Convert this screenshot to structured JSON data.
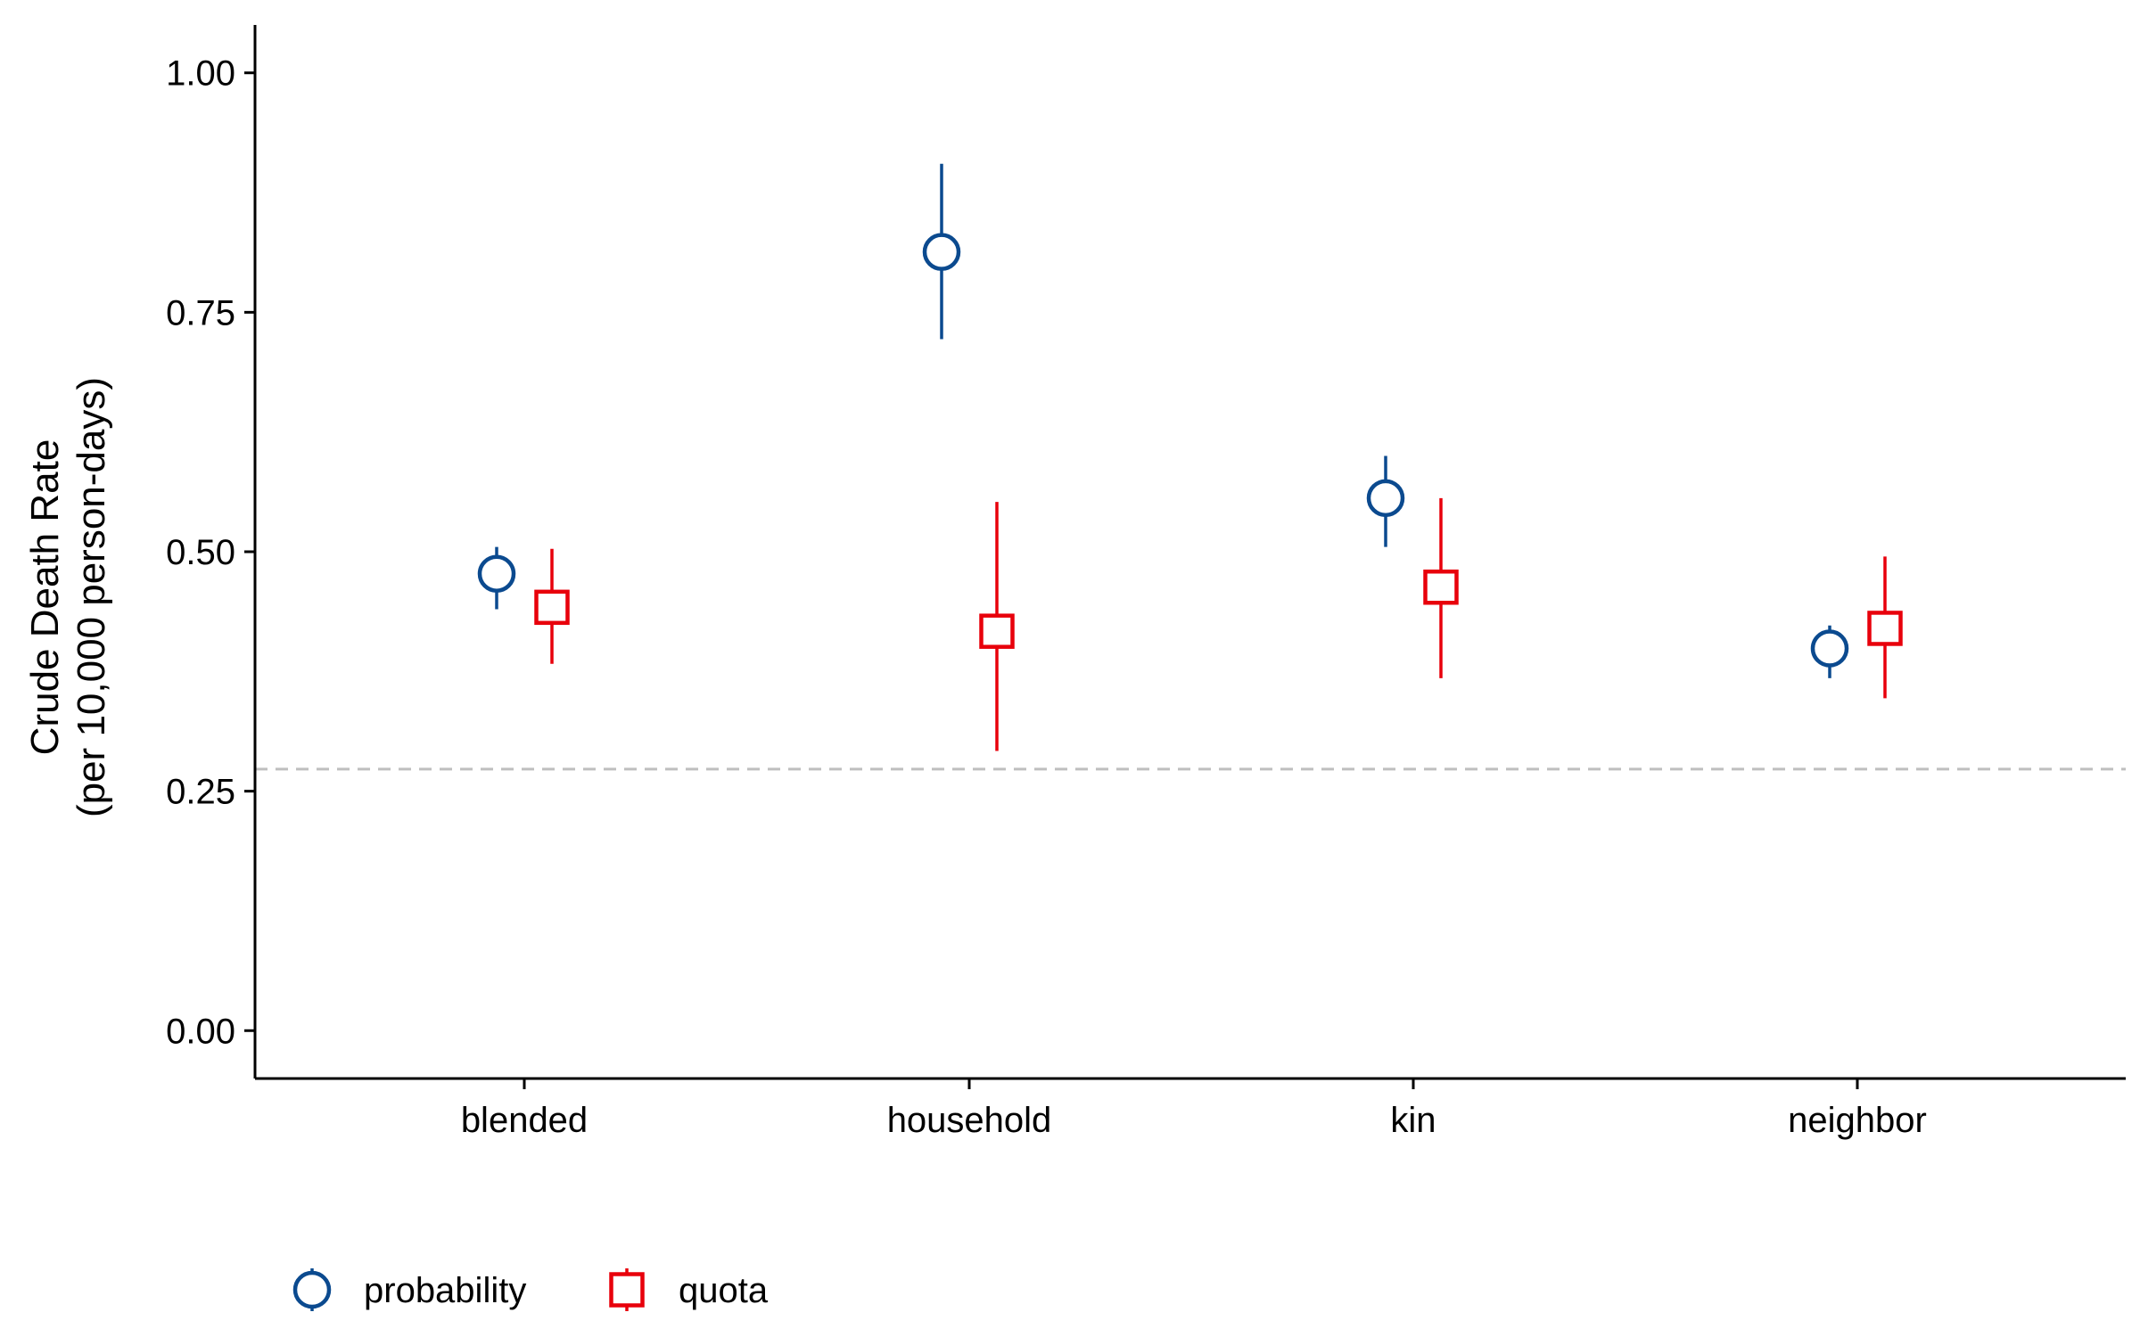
{
  "chart_data": {
    "type": "scatter",
    "title": "",
    "xlabel": "",
    "ylabel_lines": [
      "Crude Death Rate",
      "(per 10,000 person-days)"
    ],
    "categories": [
      "blended",
      "household",
      "kin",
      "neighbor"
    ],
    "ylim": [
      -0.05,
      1.05
    ],
    "yticks": [
      0.0,
      0.25,
      0.5,
      0.75,
      1.0
    ],
    "ytick_labels": [
      "0.00",
      "0.25",
      "0.50",
      "0.75",
      "1.00"
    ],
    "reference_line": {
      "y": 0.273,
      "style": "dashed",
      "color": "#bfbfbf"
    },
    "grid": false,
    "legend_position": "bottom-left",
    "series": [
      {
        "name": "probability",
        "marker": "circle",
        "color": "#0b4a8f",
        "values": [
          0.477,
          0.813,
          0.556,
          0.399
        ],
        "lower": [
          0.44,
          0.722,
          0.505,
          0.368
        ],
        "upper": [
          0.505,
          0.905,
          0.6,
          0.423
        ]
      },
      {
        "name": "quota",
        "marker": "square",
        "color": "#e8000b",
        "values": [
          0.442,
          0.417,
          0.463,
          0.42
        ],
        "lower": [
          0.383,
          0.292,
          0.368,
          0.347
        ],
        "upper": [
          0.503,
          0.552,
          0.556,
          0.495
        ]
      }
    ]
  }
}
